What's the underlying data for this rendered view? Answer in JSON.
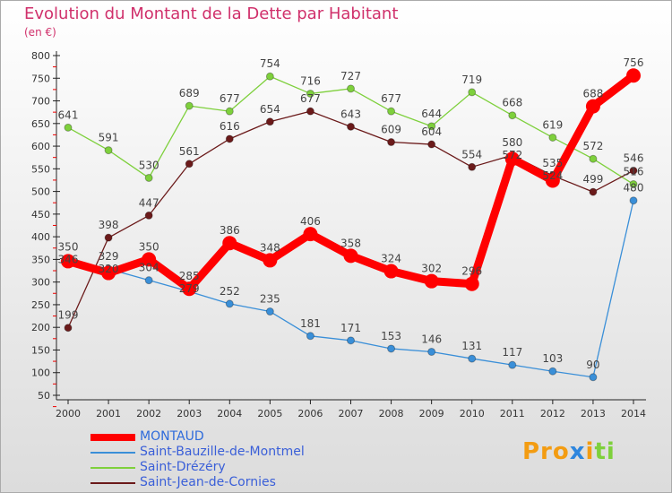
{
  "chart_data": {
    "type": "line",
    "title": "Evolution du Montant de la Dette par Habitant",
    "subtitle": "(en €)",
    "ylim": [
      50,
      800
    ],
    "yticks": [
      50,
      100,
      150,
      200,
      250,
      300,
      350,
      400,
      450,
      500,
      550,
      600,
      650,
      700,
      750,
      800
    ],
    "x": [
      "2000",
      "2001",
      "2002",
      "2003",
      "2004",
      "2005",
      "2006",
      "2007",
      "2008",
      "2009",
      "2010",
      "2011",
      "2012",
      "2013",
      "2014"
    ],
    "series": [
      {
        "name": "Saint-Drézéry",
        "color": "#7ed03c",
        "values": [
          641,
          591,
          530,
          689,
          677,
          754,
          716,
          727,
          677,
          644,
          719,
          668,
          619,
          572,
          516
        ]
      },
      {
        "name": "Saint-Jean-de-Cornies",
        "color": "#6b1a1a",
        "values": [
          199,
          398,
          447,
          561,
          616,
          654,
          677,
          643,
          609,
          604,
          554,
          580,
          535,
          499,
          546
        ]
      },
      {
        "name": "Saint-Bauzille-de-Montmel",
        "color": "#3a8fd8",
        "values": [
          350,
          329,
          304,
          279,
          252,
          235,
          181,
          171,
          153,
          146,
          131,
          117,
          103,
          90,
          480
        ]
      },
      {
        "name": "MONTAUD",
        "color": "#ff0000",
        "values": [
          346,
          320,
          350,
          285,
          386,
          348,
          406,
          358,
          324,
          302,
          296,
          572,
          524,
          688,
          756
        ]
      }
    ],
    "legend_order": [
      3,
      2,
      0,
      1
    ],
    "legend_placement": "bottom-left"
  },
  "logo": "Proxiti"
}
